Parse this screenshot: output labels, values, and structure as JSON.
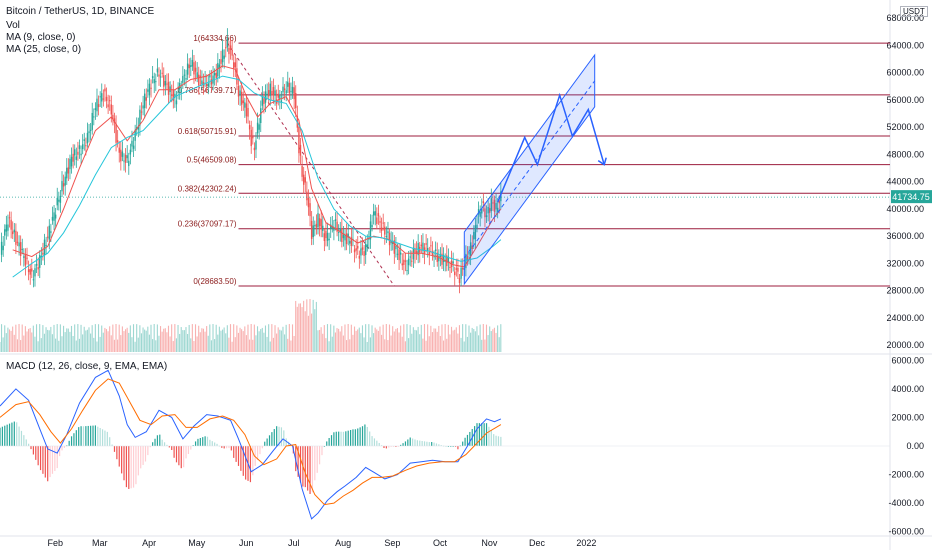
{
  "header": {
    "title": "Bitcoin / TetherUS, 1D, BINANCE",
    "vol_label": "Vol",
    "ma1_label": "MA (9, close, 0)",
    "ma2_label": "MA (25, close, 0)",
    "currency": "USDT"
  },
  "macd_label": "MACD (12, 26, close, 9, EMA, EMA)",
  "current_price": "41734.75",
  "colors": {
    "up": "#26a69a",
    "down": "#ef5350",
    "ma_fast": "#ef5350",
    "ma_slow": "#26c6da",
    "fib": "#9c1c3c",
    "channel": "#2962ff",
    "macd_line": "#2962ff",
    "signal_line": "#ff6d00",
    "price_tag": "#26a69a"
  },
  "chart_data": {
    "type": "candlestick",
    "title": "Bitcoin / TetherUS, 1D, BINANCE",
    "price_axis": {
      "ticks": [
        "68000.00",
        "64000.00",
        "60000.00",
        "56000.00",
        "52000.00",
        "48000.00",
        "44000.00",
        "40000.00",
        "36000.00",
        "32000.00",
        "28000.00",
        "24000.00",
        "20000.00"
      ],
      "ylim": [
        19000,
        69500
      ]
    },
    "macd_axis": {
      "ticks": [
        "6000.00",
        "4000.00",
        "2000.00",
        "0.00",
        "-2000.00",
        "-4000.00",
        "-6000.00"
      ],
      "ylim": [
        -6300,
        6300
      ]
    },
    "x_ticks": [
      "Feb",
      "Mar",
      "Apr",
      "May",
      "Jun",
      "Jul",
      "Aug",
      "Sep",
      "Oct",
      "Nov",
      "Dec",
      "2022"
    ],
    "fib_levels": [
      {
        "label": "1(64334.66)",
        "value": 64334.66
      },
      {
        "label": "0.786(56739.71)",
        "value": 56739.71
      },
      {
        "label": "0.618(50715.91)",
        "value": 50715.91
      },
      {
        "label": "0.5(46509.08)",
        "value": 46509.08
      },
      {
        "label": "0.382(42302.24)",
        "value": 42302.24
      },
      {
        "label": "0.236(37097.17)",
        "value": 37097.17
      },
      {
        "label": "0(28683.50)",
        "value": 28683.5
      }
    ],
    "price_path": [
      [
        0,
        33500
      ],
      [
        5,
        38500
      ],
      [
        10,
        35500
      ],
      [
        15,
        33000
      ],
      [
        20,
        30000
      ],
      [
        25,
        32500
      ],
      [
        30,
        36000
      ],
      [
        35,
        40000
      ],
      [
        40,
        44000
      ],
      [
        45,
        47500
      ],
      [
        50,
        48500
      ],
      [
        55,
        50500
      ],
      [
        60,
        55000
      ],
      [
        65,
        57000
      ],
      [
        70,
        54500
      ],
      [
        75,
        48000
      ],
      [
        80,
        47000
      ],
      [
        85,
        51000
      ],
      [
        90,
        55500
      ],
      [
        95,
        58500
      ],
      [
        100,
        60000
      ],
      [
        105,
        58000
      ],
      [
        110,
        56000
      ],
      [
        115,
        59000
      ],
      [
        120,
        61500
      ],
      [
        125,
        59000
      ],
      [
        130,
        58500
      ],
      [
        135,
        59500
      ],
      [
        140,
        62500
      ],
      [
        143,
        64300
      ],
      [
        147,
        61500
      ],
      [
        150,
        57000
      ],
      [
        155,
        54500
      ],
      [
        158,
        50000
      ],
      [
        160,
        49000
      ],
      [
        165,
        56000
      ],
      [
        170,
        57500
      ],
      [
        175,
        56000
      ],
      [
        180,
        58000
      ],
      [
        185,
        57000
      ],
      [
        188,
        49000
      ],
      [
        190,
        45000
      ],
      [
        193,
        42000
      ],
      [
        196,
        36500
      ],
      [
        200,
        38500
      ],
      [
        205,
        35500
      ],
      [
        210,
        38000
      ],
      [
        215,
        36000
      ],
      [
        220,
        35500
      ],
      [
        225,
        33500
      ],
      [
        230,
        34000
      ],
      [
        235,
        39500
      ],
      [
        240,
        37500
      ],
      [
        245,
        35500
      ],
      [
        250,
        33500
      ],
      [
        255,
        31500
      ],
      [
        260,
        33500
      ],
      [
        265,
        34500
      ],
      [
        270,
        34000
      ],
      [
        275,
        33000
      ],
      [
        280,
        32500
      ],
      [
        285,
        31500
      ],
      [
        289,
        30000
      ],
      [
        293,
        32500
      ],
      [
        297,
        35000
      ],
      [
        300,
        38500
      ],
      [
        303,
        40500
      ],
      [
        306,
        39000
      ],
      [
        309,
        41000
      ],
      [
        312,
        40000
      ],
      [
        315,
        41734
      ]
    ],
    "ma9": [
      [
        8,
        34000
      ],
      [
        20,
        33000
      ],
      [
        30,
        34500
      ],
      [
        40,
        40000
      ],
      [
        50,
        46000
      ],
      [
        60,
        51500
      ],
      [
        70,
        53500
      ],
      [
        80,
        50000
      ],
      [
        90,
        53000
      ],
      [
        100,
        57500
      ],
      [
        110,
        57500
      ],
      [
        120,
        59000
      ],
      [
        130,
        59500
      ],
      [
        140,
        61000
      ],
      [
        148,
        60500
      ],
      [
        155,
        56500
      ],
      [
        162,
        53500
      ],
      [
        170,
        55500
      ],
      [
        180,
        56500
      ],
      [
        188,
        53000
      ],
      [
        196,
        43000
      ],
      [
        205,
        38000
      ],
      [
        215,
        36500
      ],
      [
        225,
        35000
      ],
      [
        235,
        36000
      ],
      [
        245,
        35500
      ],
      [
        255,
        33500
      ],
      [
        265,
        33500
      ],
      [
        275,
        33000
      ],
      [
        285,
        31800
      ],
      [
        292,
        31500
      ],
      [
        300,
        34500
      ],
      [
        310,
        38500
      ],
      [
        315,
        40000
      ]
    ],
    "ma25": [
      [
        8,
        30000
      ],
      [
        20,
        32000
      ],
      [
        30,
        33500
      ],
      [
        40,
        36500
      ],
      [
        50,
        40500
      ],
      [
        60,
        45000
      ],
      [
        70,
        49000
      ],
      [
        80,
        50500
      ],
      [
        90,
        51500
      ],
      [
        100,
        54000
      ],
      [
        110,
        56500
      ],
      [
        120,
        57500
      ],
      [
        130,
        58500
      ],
      [
        140,
        59500
      ],
      [
        150,
        59000
      ],
      [
        160,
        57000
      ],
      [
        170,
        56000
      ],
      [
        180,
        55500
      ],
      [
        190,
        51500
      ],
      [
        200,
        44500
      ],
      [
        210,
        40000
      ],
      [
        220,
        37500
      ],
      [
        230,
        36000
      ],
      [
        240,
        35800
      ],
      [
        250,
        35000
      ],
      [
        260,
        34200
      ],
      [
        270,
        33800
      ],
      [
        280,
        33000
      ],
      [
        290,
        32300
      ],
      [
        300,
        32800
      ],
      [
        310,
        34500
      ],
      [
        315,
        35500
      ]
    ],
    "macd_line": [
      [
        0,
        2800
      ],
      [
        10,
        4000
      ],
      [
        18,
        3200
      ],
      [
        25,
        1200
      ],
      [
        30,
        -200
      ],
      [
        36,
        -500
      ],
      [
        42,
        800
      ],
      [
        50,
        3000
      ],
      [
        60,
        4800
      ],
      [
        68,
        5300
      ],
      [
        75,
        3500
      ],
      [
        80,
        1500
      ],
      [
        85,
        600
      ],
      [
        92,
        1000
      ],
      [
        100,
        2500
      ],
      [
        108,
        2000
      ],
      [
        115,
        500
      ],
      [
        122,
        1400
      ],
      [
        130,
        2200
      ],
      [
        137,
        2100
      ],
      [
        145,
        1800
      ],
      [
        150,
        500
      ],
      [
        158,
        -1800
      ],
      [
        165,
        -1300
      ],
      [
        172,
        -300
      ],
      [
        178,
        500
      ],
      [
        184,
        0
      ],
      [
        190,
        -3000
      ],
      [
        196,
        -5100
      ],
      [
        200,
        -4700
      ],
      [
        206,
        -3800
      ],
      [
        212,
        -3200
      ],
      [
        217,
        -2800
      ],
      [
        224,
        -2200
      ],
      [
        230,
        -1500
      ],
      [
        236,
        -1900
      ],
      [
        242,
        -2300
      ],
      [
        250,
        -2000
      ],
      [
        258,
        -1200
      ],
      [
        265,
        -1100
      ],
      [
        272,
        -1000
      ],
      [
        280,
        -1100
      ],
      [
        288,
        -1100
      ],
      [
        294,
        0
      ],
      [
        300,
        1200
      ],
      [
        306,
        1900
      ],
      [
        311,
        1700
      ],
      [
        315,
        1900
      ]
    ],
    "signal_line": [
      [
        0,
        2000
      ],
      [
        10,
        2900
      ],
      [
        18,
        3100
      ],
      [
        25,
        2200
      ],
      [
        32,
        1000
      ],
      [
        38,
        200
      ],
      [
        45,
        1200
      ],
      [
        52,
        2500
      ],
      [
        60,
        3900
      ],
      [
        68,
        4700
      ],
      [
        75,
        4400
      ],
      [
        82,
        3000
      ],
      [
        88,
        1800
      ],
      [
        95,
        1500
      ],
      [
        102,
        2100
      ],
      [
        110,
        2200
      ],
      [
        117,
        1300
      ],
      [
        124,
        1300
      ],
      [
        132,
        1900
      ],
      [
        140,
        2100
      ],
      [
        147,
        1800
      ],
      [
        154,
        800
      ],
      [
        160,
        -700
      ],
      [
        166,
        -1300
      ],
      [
        174,
        -900
      ],
      [
        180,
        0
      ],
      [
        186,
        100
      ],
      [
        192,
        -1900
      ],
      [
        198,
        -3400
      ],
      [
        204,
        -4100
      ],
      [
        210,
        -4000
      ],
      [
        216,
        -3500
      ],
      [
        222,
        -3100
      ],
      [
        228,
        -2600
      ],
      [
        234,
        -2200
      ],
      [
        240,
        -2200
      ],
      [
        247,
        -2100
      ],
      [
        255,
        -1700
      ],
      [
        262,
        -1400
      ],
      [
        270,
        -1200
      ],
      [
        278,
        -1100
      ],
      [
        286,
        -1100
      ],
      [
        293,
        -600
      ],
      [
        300,
        200
      ],
      [
        306,
        900
      ],
      [
        312,
        1300
      ],
      [
        315,
        1500
      ]
    ]
  }
}
